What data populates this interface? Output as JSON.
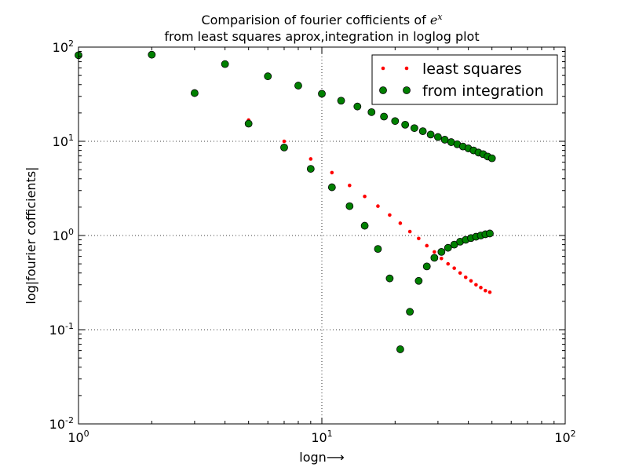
{
  "chart_data": {
    "type": "scatter",
    "title_line1_prefix": "Comparision of fourier cofficients of ",
    "title_line1_math_base": "e",
    "title_line1_math_exp": "x",
    "title_line2": "from least squares aprox,integration in loglog plot",
    "xlabel": "logn⟶",
    "ylabel": "log|fourier cofficients|",
    "xscale": "log",
    "yscale": "log",
    "xlim": [
      1,
      100
    ],
    "ylim": [
      0.01,
      100
    ],
    "grid": true,
    "legend_position": "top-right",
    "x_ticks": [
      {
        "value": 1,
        "base": "10",
        "exp": "0"
      },
      {
        "value": 10,
        "base": "10",
        "exp": "1"
      },
      {
        "value": 100,
        "base": "10",
        "exp": "2"
      }
    ],
    "y_ticks": [
      {
        "value": 0.01,
        "base": "10",
        "exp": "-2"
      },
      {
        "value": 0.1,
        "base": "10",
        "exp": "-1"
      },
      {
        "value": 1,
        "base": "10",
        "exp": "0"
      },
      {
        "value": 10,
        "base": "10",
        "exp": "1"
      },
      {
        "value": 100,
        "base": "10",
        "exp": "2"
      }
    ],
    "series": [
      {
        "name": "least squares",
        "color": "#ff0000",
        "marker": "dot",
        "points": [
          [
            1,
            82
          ],
          [
            3,
            33
          ],
          [
            5,
            16.8
          ],
          [
            7,
            10
          ],
          [
            9,
            6.5
          ],
          [
            11,
            4.65
          ],
          [
            13,
            3.4
          ],
          [
            15,
            2.6
          ],
          [
            17,
            2.05
          ],
          [
            19,
            1.65
          ],
          [
            21,
            1.35
          ],
          [
            23,
            1.1
          ],
          [
            25,
            0.93
          ],
          [
            27,
            0.78
          ],
          [
            29,
            0.67
          ],
          [
            31,
            0.57
          ],
          [
            33,
            0.5
          ],
          [
            35,
            0.45
          ],
          [
            37,
            0.4
          ],
          [
            39,
            0.36
          ],
          [
            41,
            0.33
          ],
          [
            43,
            0.3
          ],
          [
            45,
            0.28
          ],
          [
            47,
            0.26
          ],
          [
            49,
            0.25
          ]
        ]
      },
      {
        "name": "from integration",
        "color": "#008000",
        "marker": "circle",
        "points": [
          [
            1,
            82
          ],
          [
            2,
            83
          ],
          [
            4,
            66
          ],
          [
            6,
            49
          ],
          [
            8,
            39
          ],
          [
            10,
            32
          ],
          [
            12,
            27
          ],
          [
            14,
            23.4
          ],
          [
            16,
            20.4
          ],
          [
            18,
            18.3
          ],
          [
            20,
            16.4
          ],
          [
            22,
            15
          ],
          [
            24,
            13.8
          ],
          [
            26,
            12.8
          ],
          [
            28,
            11.8
          ],
          [
            30,
            11.1
          ],
          [
            32,
            10.4
          ],
          [
            34,
            9.8
          ],
          [
            36,
            9.3
          ],
          [
            38,
            8.8
          ],
          [
            40,
            8.4
          ],
          [
            42,
            8
          ],
          [
            44,
            7.6
          ],
          [
            46,
            7.3
          ],
          [
            48,
            6.9
          ],
          [
            50,
            6.6
          ],
          [
            3,
            32.5
          ],
          [
            5,
            15.4
          ],
          [
            7,
            8.6
          ],
          [
            9,
            5.1
          ],
          [
            11,
            3.25
          ],
          [
            13,
            2.05
          ],
          [
            15,
            1.27
          ],
          [
            17,
            0.72
          ],
          [
            19,
            0.35
          ],
          [
            21,
            0.062
          ],
          [
            23,
            0.155
          ],
          [
            25,
            0.33
          ],
          [
            27,
            0.47
          ],
          [
            29,
            0.58
          ],
          [
            31,
            0.67
          ],
          [
            33,
            0.74
          ],
          [
            35,
            0.8
          ],
          [
            37,
            0.86
          ],
          [
            39,
            0.9
          ],
          [
            41,
            0.94
          ],
          [
            43,
            0.97
          ],
          [
            45,
            1
          ],
          [
            47,
            1.03
          ],
          [
            49,
            1.05
          ]
        ]
      }
    ]
  }
}
